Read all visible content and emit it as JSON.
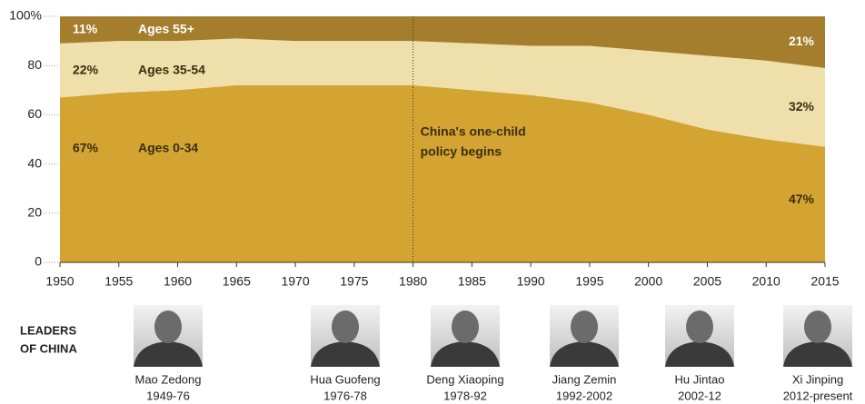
{
  "chart_data": {
    "type": "stacked-area",
    "x": [
      1950,
      1955,
      1960,
      1965,
      1970,
      1975,
      1980,
      1985,
      1990,
      1995,
      2000,
      2005,
      2010,
      2015
    ],
    "xlim": [
      1950,
      2015
    ],
    "xticks": [
      1950,
      1955,
      1960,
      1965,
      1970,
      1975,
      1980,
      1985,
      1990,
      1995,
      2000,
      2005,
      2010,
      2015
    ],
    "ylim": [
      0,
      100
    ],
    "yticks": [
      0,
      20,
      40,
      60,
      80,
      {
        "value": 100,
        "label": "100%"
      }
    ],
    "series": [
      {
        "name": "Ages 0-34",
        "color": "#d3a431",
        "text_color": "#3a2d10",
        "values": [
          67,
          69,
          70,
          72,
          72,
          72,
          72,
          70,
          68,
          65,
          60,
          54,
          50,
          47
        ],
        "value_labels": [
          "67%",
          null,
          null,
          null,
          null,
          null,
          null,
          null,
          null,
          null,
          null,
          null,
          null,
          "47%"
        ]
      },
      {
        "name": "Ages 35-54",
        "color": "#efdfaa",
        "text_color": "#3a2d10",
        "values": [
          22,
          21,
          20,
          19,
          18,
          18,
          18,
          19,
          20,
          23,
          26,
          30,
          32,
          32
        ],
        "value_labels": [
          "22%",
          null,
          null,
          null,
          null,
          null,
          null,
          null,
          null,
          null,
          null,
          null,
          null,
          "32%"
        ]
      },
      {
        "name": "Ages 55+",
        "color": "#a47e2d",
        "text_color": "#ffffff",
        "values": [
          11,
          10,
          10,
          9,
          10,
          10,
          10,
          11,
          12,
          12,
          14,
          16,
          18,
          21
        ],
        "value_labels": [
          "11%",
          null,
          null,
          null,
          null,
          null,
          null,
          null,
          null,
          null,
          null,
          null,
          null,
          "21%"
        ]
      }
    ],
    "annotation": {
      "x": 1980,
      "text": [
        "China's one-child",
        "policy begins"
      ]
    }
  },
  "leaders": {
    "title": [
      "LEADERS",
      "OF CHINA"
    ],
    "items": [
      {
        "name": "Mao Zedong",
        "years": "1949-76"
      },
      {
        "name": "Hua Guofeng",
        "years": "1976-78"
      },
      {
        "name": "Deng Xiaoping",
        "years": "1978-92"
      },
      {
        "name": "Jiang Zemin",
        "years": "1992-2002"
      },
      {
        "name": "Hu Jintao",
        "years": "2002-12"
      },
      {
        "name": "Xi Jinping",
        "years": "2012-present"
      }
    ]
  }
}
